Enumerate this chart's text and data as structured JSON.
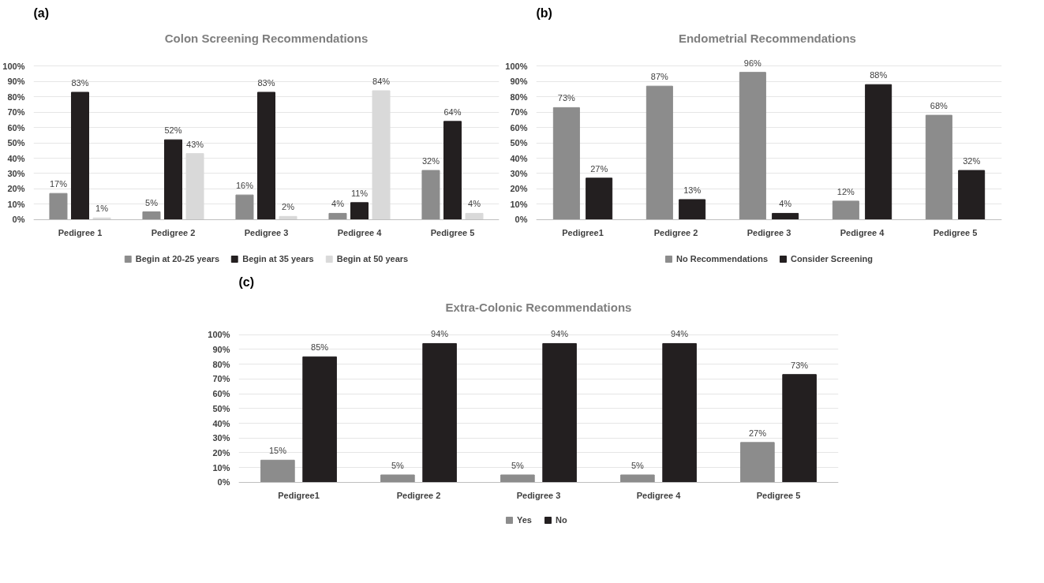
{
  "chart_data": [
    {
      "type": "bar",
      "title": "Colon Screening Recommendations",
      "annotations": [
        "(a)"
      ],
      "categories": [
        "Pedigree 1",
        "Pedigree 2",
        "Pedigree 3",
        "Pedigree 4",
        "Pedigree 5"
      ],
      "series": [
        {
          "name": "Begin at 20-25 years",
          "color": "#8c8c8c",
          "values": [
            17,
            5,
            16,
            4,
            32
          ],
          "value_labels": [
            "17%",
            "5%",
            "16%",
            "4%",
            "32%"
          ]
        },
        {
          "name": "Begin at 35 years",
          "color": "#231f20",
          "values": [
            83,
            52,
            83,
            11,
            64
          ],
          "value_labels": [
            "83%",
            "52%",
            "83%",
            "11%",
            "64%"
          ]
        },
        {
          "name": "Begin at 50 years",
          "color": "#d9d9d9",
          "values": [
            1,
            43,
            2,
            84,
            4
          ],
          "value_labels": [
            "1%",
            "43%",
            "2%",
            "84%",
            "4%"
          ]
        }
      ],
      "ylim": [
        0,
        100
      ],
      "yticks": [
        {
          "value": 0,
          "label": "0%"
        },
        {
          "value": 10,
          "label": "10%"
        },
        {
          "value": 20,
          "label": "20%"
        },
        {
          "value": 30,
          "label": "30%"
        },
        {
          "value": 40,
          "label": "40%"
        },
        {
          "value": 50,
          "label": "50%"
        },
        {
          "value": 60,
          "label": "60%"
        },
        {
          "value": 70,
          "label": "70%"
        },
        {
          "value": 80,
          "label": "80%"
        },
        {
          "value": 90,
          "label": "90%"
        },
        {
          "value": 100,
          "label": "100%"
        }
      ],
      "grid": "y",
      "legend": "bottom"
    },
    {
      "type": "bar",
      "title": "Endometrial  Recommendations",
      "annotations": [
        "(b)"
      ],
      "categories": [
        "Pedigree1",
        "Pedigree 2",
        "Pedigree 3",
        "Pedigree 4",
        "Pedigree 5"
      ],
      "series": [
        {
          "name": "No Recommendations",
          "color": "#8c8c8c",
          "values": [
            73,
            87,
            96,
            12,
            68
          ],
          "value_labels": [
            "73%",
            "87%",
            "96%",
            "12%",
            "68%"
          ]
        },
        {
          "name": "Consider Screening",
          "color": "#231f20",
          "values": [
            27,
            13,
            4,
            88,
            32
          ],
          "value_labels": [
            "27%",
            "13%",
            "4%",
            "88%",
            "32%"
          ]
        }
      ],
      "ylim": [
        0,
        100
      ],
      "yticks": [
        {
          "value": 0,
          "label": "0%"
        },
        {
          "value": 10,
          "label": "10%"
        },
        {
          "value": 20,
          "label": "20%"
        },
        {
          "value": 30,
          "label": "30%"
        },
        {
          "value": 40,
          "label": "40%"
        },
        {
          "value": 50,
          "label": "50%"
        },
        {
          "value": 60,
          "label": "60%"
        },
        {
          "value": 70,
          "label": "70%"
        },
        {
          "value": 80,
          "label": "80%"
        },
        {
          "value": 90,
          "label": "90%"
        },
        {
          "value": 100,
          "label": "100%"
        }
      ],
      "grid": "y",
      "legend": "bottom"
    },
    {
      "type": "bar",
      "title": "Extra-Colonic Recommendations",
      "annotations": [
        "(c)"
      ],
      "categories": [
        "Pedigree1",
        "Pedigree 2",
        "Pedigree 3",
        "Pedigree 4",
        "Pedigree 5"
      ],
      "series": [
        {
          "name": "Yes",
          "color": "#8c8c8c",
          "values": [
            15,
            5,
            5,
            5,
            27
          ],
          "value_labels": [
            "15%",
            "5%",
            "5%",
            "5%",
            "27%"
          ]
        },
        {
          "name": "No",
          "color": "#231f20",
          "values": [
            85,
            94,
            94,
            94,
            73
          ],
          "value_labels": [
            "85%",
            "94%",
            "94%",
            "94%",
            "73%"
          ]
        }
      ],
      "ylim": [
        0,
        100
      ],
      "yticks": [
        {
          "value": 0,
          "label": "0%"
        },
        {
          "value": 10,
          "label": "10%"
        },
        {
          "value": 20,
          "label": "20%"
        },
        {
          "value": 30,
          "label": "30%"
        },
        {
          "value": 40,
          "label": "40%"
        },
        {
          "value": 50,
          "label": "50%"
        },
        {
          "value": 60,
          "label": "60%"
        },
        {
          "value": 70,
          "label": "70%"
        },
        {
          "value": 80,
          "label": "80%"
        },
        {
          "value": 90,
          "label": "90%"
        },
        {
          "value": 100,
          "label": "100%"
        }
      ],
      "grid": "y",
      "legend": "bottom"
    }
  ]
}
